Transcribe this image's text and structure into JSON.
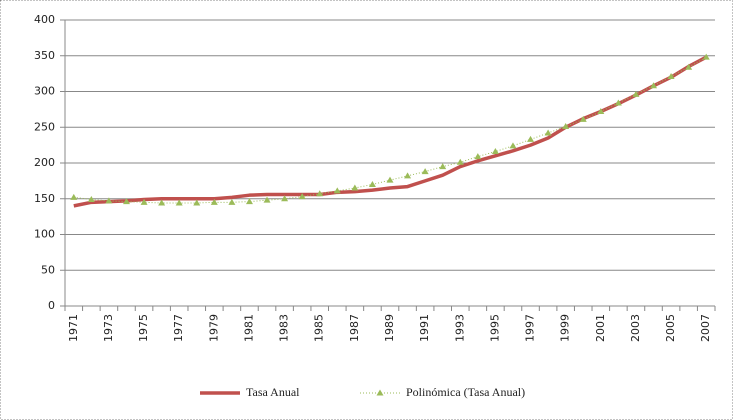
{
  "chart_data": {
    "type": "line",
    "categories": [
      "1971",
      null,
      "1973",
      null,
      "1975",
      null,
      "1977",
      null,
      "1979",
      null,
      "1981",
      null,
      "1983",
      null,
      "1985",
      null,
      "1987",
      null,
      "1989",
      null,
      "1991",
      null,
      "1993",
      null,
      "1995",
      null,
      "1997",
      null,
      "1999",
      null,
      "2001",
      null,
      "2003",
      null,
      "2005",
      null,
      "2007"
    ],
    "series": [
      {
        "name": "Tasa Anual",
        "color": "#c0504d",
        "values": [
          140,
          145,
          146,
          147,
          149,
          150,
          150,
          150,
          150,
          152,
          155,
          156,
          156,
          156,
          156,
          159,
          160,
          162,
          165,
          167,
          175,
          183,
          195,
          203,
          210,
          217,
          225,
          235,
          250,
          262,
          272,
          283,
          295,
          308,
          320,
          335,
          348
        ]
      },
      {
        "name": "Polinómica (Tasa Anual)",
        "color": "#9bbb59",
        "values": [
          152,
          149,
          147,
          146,
          145,
          144,
          144,
          144,
          145,
          145,
          146,
          148,
          150,
          153,
          157,
          161,
          165,
          170,
          176,
          182,
          188,
          195,
          201,
          209,
          216,
          224,
          233,
          242,
          251,
          261,
          272,
          284,
          296,
          308,
          321,
          334,
          348
        ]
      }
    ],
    "ylim": [
      0,
      400
    ],
    "yticks": [
      0,
      50,
      100,
      150,
      200,
      250,
      300,
      350,
      400
    ],
    "grid": true,
    "legend": "bottom"
  }
}
